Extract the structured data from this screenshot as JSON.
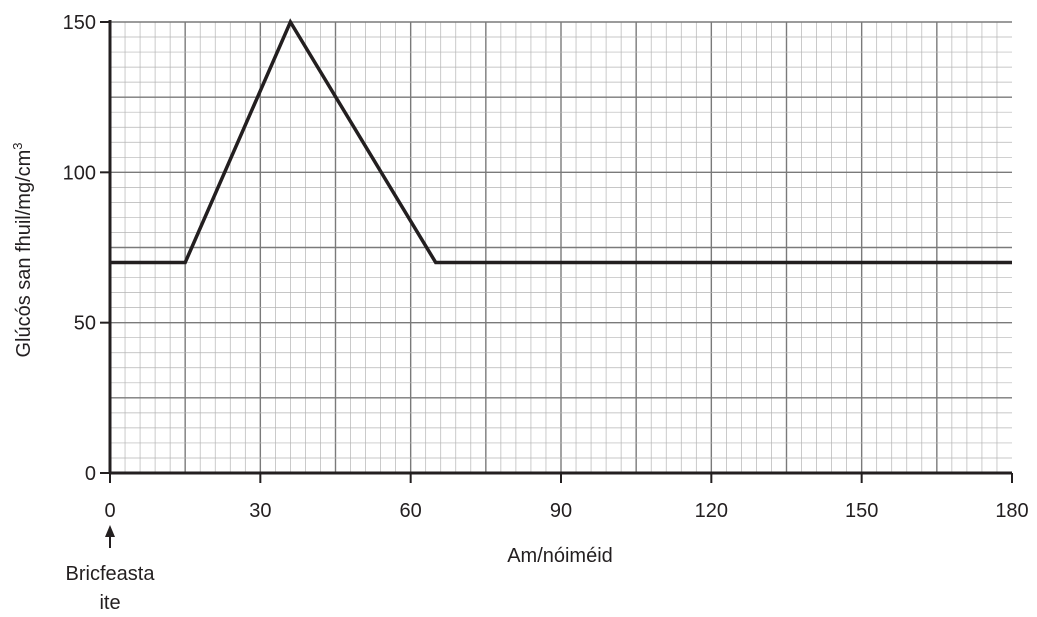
{
  "chart_data": {
    "type": "line",
    "xlabel": "Am/nóiméid",
    "ylabel": "Glúcós san fhuil/mg/cm",
    "ylabel_superscript": "3",
    "xlim": [
      0,
      180
    ],
    "ylim": [
      0,
      150
    ],
    "x_ticks": [
      "0",
      "30",
      "60",
      "90",
      "120",
      "150",
      "180"
    ],
    "y_ticks": [
      "0",
      "50",
      "100",
      "150"
    ],
    "grid": true,
    "series": [
      {
        "x": [
          0,
          15,
          36,
          65,
          180
        ],
        "y": [
          70,
          70,
          150,
          70,
          70
        ]
      }
    ],
    "annotation": {
      "text_line1": "Bricfeasta",
      "text_line2": "ite",
      "x": 0
    }
  }
}
